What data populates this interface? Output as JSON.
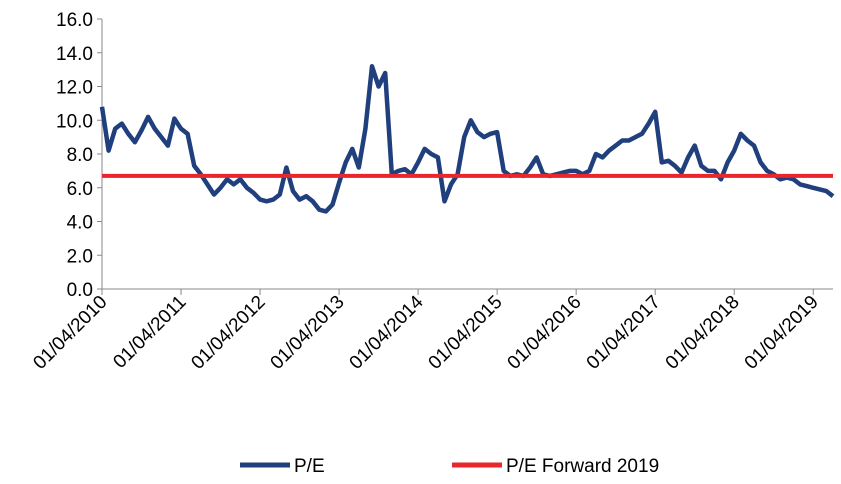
{
  "chart_data": {
    "type": "line",
    "x": [
      "01/04/2010",
      "01/05/2010",
      "01/06/2010",
      "01/07/2010",
      "01/08/2010",
      "01/09/2010",
      "01/10/2010",
      "01/11/2010",
      "01/12/2010",
      "01/01/2011",
      "01/02/2011",
      "01/03/2011",
      "01/04/2011",
      "01/05/2011",
      "01/06/2011",
      "01/07/2011",
      "01/08/2011",
      "01/09/2011",
      "01/10/2011",
      "01/11/2011",
      "01/12/2011",
      "01/01/2012",
      "01/02/2012",
      "01/03/2012",
      "01/04/2012",
      "01/05/2012",
      "01/06/2012",
      "01/07/2012",
      "01/08/2012",
      "01/09/2012",
      "01/10/2012",
      "01/11/2012",
      "01/12/2012",
      "01/01/2013",
      "01/02/2013",
      "01/03/2013",
      "01/04/2013",
      "01/05/2013",
      "01/06/2013",
      "01/07/2013",
      "01/08/2013",
      "01/09/2013",
      "01/10/2013",
      "01/11/2013",
      "01/12/2013",
      "01/01/2014",
      "01/02/2014",
      "01/03/2014",
      "01/04/2014",
      "01/05/2014",
      "01/06/2014",
      "01/07/2014",
      "01/08/2014",
      "01/09/2014",
      "01/10/2014",
      "01/11/2014",
      "01/12/2014",
      "01/01/2015",
      "01/02/2015",
      "01/03/2015",
      "01/04/2015",
      "01/05/2015",
      "01/06/2015",
      "01/07/2015",
      "01/08/2015",
      "01/09/2015",
      "01/10/2015",
      "01/11/2015",
      "01/12/2015",
      "01/01/2016",
      "01/02/2016",
      "01/03/2016",
      "01/04/2016",
      "01/05/2016",
      "01/06/2016",
      "01/07/2016",
      "01/08/2016",
      "01/09/2016",
      "01/10/2016",
      "01/11/2016",
      "01/12/2016",
      "01/01/2017",
      "01/02/2017",
      "01/03/2017",
      "01/04/2017",
      "01/05/2017",
      "01/06/2017",
      "01/07/2017",
      "01/08/2017",
      "01/09/2017",
      "01/10/2017",
      "01/11/2017",
      "01/12/2017",
      "01/01/2018",
      "01/02/2018",
      "01/03/2018",
      "01/04/2018",
      "01/05/2018",
      "01/06/2018",
      "01/07/2018",
      "01/08/2018",
      "01/09/2018",
      "01/10/2018",
      "01/11/2018",
      "01/12/2018",
      "01/01/2019",
      "01/02/2019",
      "01/03/2019",
      "01/04/2019",
      "01/05/2019",
      "01/06/2019",
      "01/07/2019"
    ],
    "series": [
      {
        "name": "P/E",
        "color": "#203f7d",
        "values": [
          10.8,
          8.2,
          9.5,
          9.8,
          9.2,
          8.7,
          9.4,
          10.2,
          9.5,
          9.0,
          8.5,
          10.1,
          9.5,
          9.2,
          7.3,
          6.8,
          6.2,
          5.6,
          6.0,
          6.5,
          6.2,
          6.5,
          6.0,
          5.7,
          5.3,
          5.2,
          5.3,
          5.6,
          7.2,
          5.8,
          5.3,
          5.5,
          5.2,
          4.7,
          4.6,
          5.0,
          6.3,
          7.5,
          8.3,
          7.2,
          9.5,
          13.2,
          12.0,
          12.8,
          6.8,
          7.0,
          7.1,
          6.8,
          7.5,
          8.3,
          8.0,
          7.8,
          5.2,
          6.2,
          6.8,
          9.0,
          10.0,
          9.3,
          9.0,
          9.2,
          9.3,
          7.0,
          6.7,
          6.8,
          6.7,
          7.2,
          7.8,
          6.8,
          6.7,
          6.8,
          6.9,
          7.0,
          7.0,
          6.8,
          7.0,
          8.0,
          7.8,
          8.2,
          8.5,
          8.8,
          8.8,
          9.0,
          9.2,
          9.8,
          10.5,
          7.5,
          7.6,
          7.3,
          6.9,
          7.8,
          8.5,
          7.3,
          7.0,
          7.0,
          6.5,
          7.5,
          8.2,
          9.2,
          8.8,
          8.5,
          7.5,
          7.0,
          6.8,
          6.5,
          6.6,
          6.5,
          6.2,
          6.1,
          6.0,
          5.9,
          5.8,
          5.5
        ]
      },
      {
        "name": "P/E Forward 2019",
        "color": "#e8262b",
        "x": [
          "01/04/2010",
          "01/07/2019"
        ],
        "values": [
          6.7,
          6.7
        ]
      }
    ],
    "xlim": [
      "01/04/2010",
      "01/07/2019"
    ],
    "xticks": [
      "01/04/2010",
      "01/04/2011",
      "01/04/2012",
      "01/04/2013",
      "01/04/2014",
      "01/04/2015",
      "01/04/2016",
      "01/04/2017",
      "01/04/2018",
      "01/04/2019"
    ],
    "ylim": [
      0,
      16
    ],
    "yticks": [
      {
        "value": 0,
        "label": "0.0"
      },
      {
        "value": 2,
        "label": "2.0"
      },
      {
        "value": 4,
        "label": "4.0"
      },
      {
        "value": 6,
        "label": "6.0"
      },
      {
        "value": 8,
        "label": "8.0"
      },
      {
        "value": 10,
        "label": "10.0"
      },
      {
        "value": 12,
        "label": "12.0"
      },
      {
        "value": 14,
        "label": "14.0"
      },
      {
        "value": 16,
        "label": "16.0"
      }
    ],
    "legend": "bottom"
  }
}
